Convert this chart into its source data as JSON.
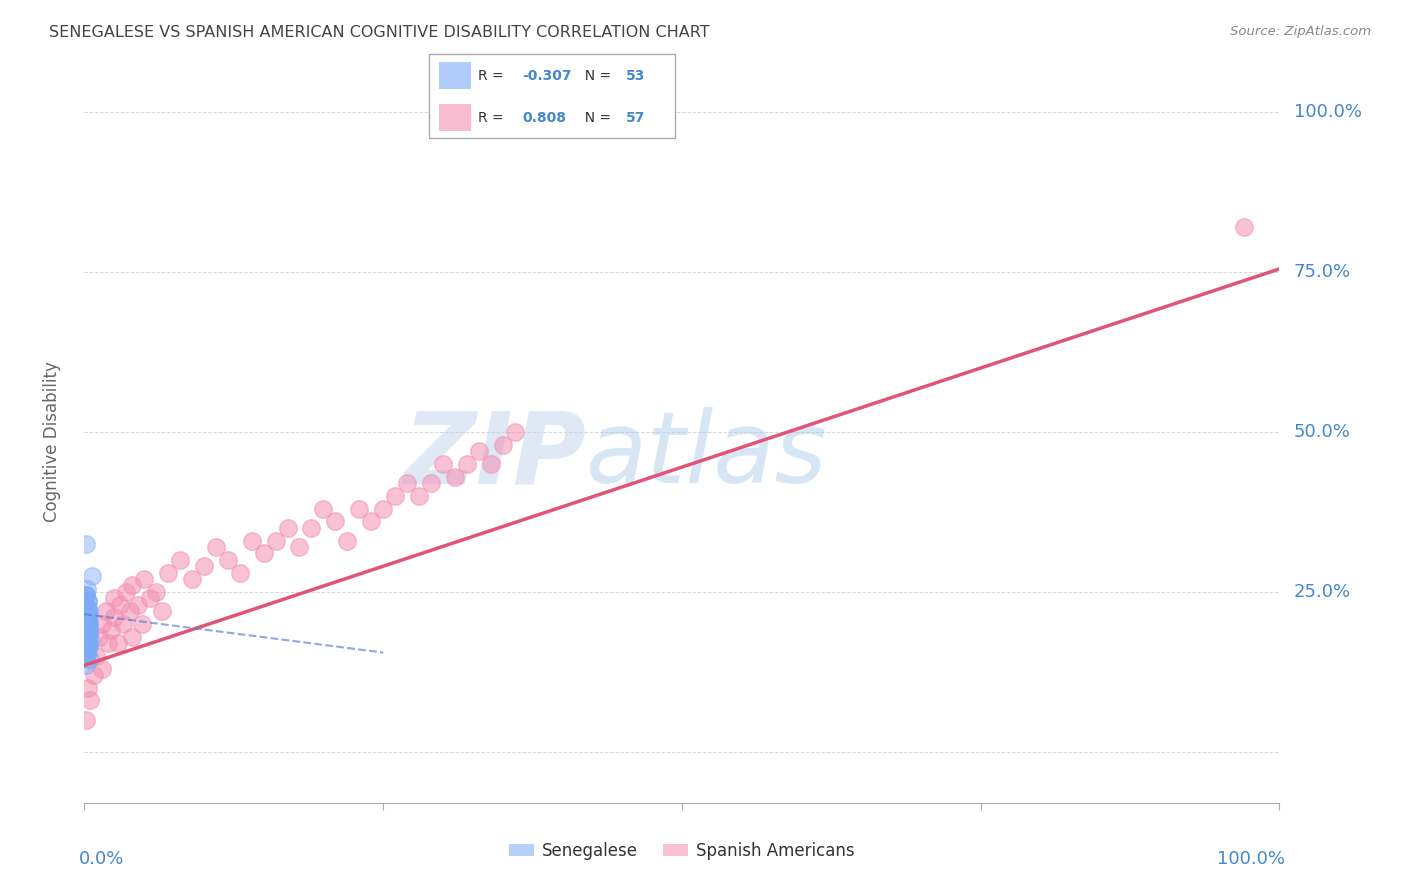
{
  "title": "SENEGALESE VS SPANISH AMERICAN COGNITIVE DISABILITY CORRELATION CHART",
  "source": "Source: ZipAtlas.com",
  "ylabel": "Cognitive Disability",
  "legend_label_blue": "Senegalese",
  "legend_label_pink": "Spanish Americans",
  "legend_blue_r": "-0.307",
  "legend_blue_n": "53",
  "legend_pink_r": "0.808",
  "legend_pink_n": "57",
  "watermark_zip": "ZIP",
  "watermark_atlas": "atlas",
  "blue_color": "#7baaf7",
  "pink_color": "#f48fb1",
  "blue_line_color": "#5577cc",
  "pink_line_color": "#e05577",
  "bg_color": "#ffffff",
  "grid_color": "#cccccc",
  "axis_label_color": "#4488cc",
  "title_color": "#444444",
  "ytick_values": [
    0.0,
    0.25,
    0.5,
    0.75,
    1.0
  ],
  "ytick_labels": [
    "",
    "25.0%",
    "50.0%",
    "75.0%",
    "100.0%"
  ],
  "xlim": [
    0.0,
    1.0
  ],
  "ylim": [
    -0.08,
    1.05
  ],
  "senegalese_x": [
    0.001,
    0.002,
    0.003,
    0.001,
    0.002,
    0.004,
    0.005,
    0.003,
    0.006,
    0.002,
    0.001,
    0.003,
    0.002,
    0.004,
    0.001,
    0.002,
    0.003,
    0.005,
    0.004,
    0.002,
    0.001,
    0.003,
    0.002,
    0.001,
    0.004,
    0.003,
    0.002,
    0.001,
    0.003,
    0.002,
    0.001,
    0.002,
    0.003,
    0.004,
    0.001,
    0.002,
    0.003,
    0.001,
    0.002,
    0.004,
    0.001,
    0.002,
    0.003,
    0.001,
    0.002,
    0.004,
    0.003,
    0.002,
    0.001,
    0.002,
    0.004,
    0.001,
    0.002
  ],
  "senegalese_y": [
    0.325,
    0.225,
    0.195,
    0.175,
    0.21,
    0.22,
    0.145,
    0.185,
    0.275,
    0.205,
    0.165,
    0.235,
    0.155,
    0.195,
    0.245,
    0.185,
    0.215,
    0.175,
    0.2,
    0.255,
    0.225,
    0.165,
    0.195,
    0.145,
    0.185,
    0.215,
    0.175,
    0.195,
    0.235,
    0.155,
    0.205,
    0.185,
    0.225,
    0.165,
    0.215,
    0.195,
    0.175,
    0.245,
    0.185,
    0.205,
    0.135,
    0.195,
    0.215,
    0.165,
    0.225,
    0.185,
    0.205,
    0.175,
    0.245,
    0.195,
    0.165,
    0.225,
    0.185
  ],
  "spanish_x": [
    0.001,
    0.003,
    0.005,
    0.008,
    0.01,
    0.012,
    0.015,
    0.015,
    0.018,
    0.02,
    0.022,
    0.025,
    0.025,
    0.028,
    0.03,
    0.032,
    0.035,
    0.038,
    0.04,
    0.04,
    0.045,
    0.048,
    0.05,
    0.055,
    0.06,
    0.065,
    0.07,
    0.08,
    0.09,
    0.1,
    0.11,
    0.12,
    0.13,
    0.14,
    0.15,
    0.16,
    0.17,
    0.18,
    0.19,
    0.2,
    0.21,
    0.22,
    0.23,
    0.24,
    0.25,
    0.26,
    0.27,
    0.28,
    0.29,
    0.3,
    0.31,
    0.32,
    0.33,
    0.34,
    0.35,
    0.36,
    0.97
  ],
  "spanish_y": [
    0.05,
    0.1,
    0.08,
    0.12,
    0.15,
    0.18,
    0.13,
    0.2,
    0.22,
    0.17,
    0.19,
    0.24,
    0.21,
    0.17,
    0.23,
    0.2,
    0.25,
    0.22,
    0.18,
    0.26,
    0.23,
    0.2,
    0.27,
    0.24,
    0.25,
    0.22,
    0.28,
    0.3,
    0.27,
    0.29,
    0.32,
    0.3,
    0.28,
    0.33,
    0.31,
    0.33,
    0.35,
    0.32,
    0.35,
    0.38,
    0.36,
    0.33,
    0.38,
    0.36,
    0.38,
    0.4,
    0.42,
    0.4,
    0.42,
    0.45,
    0.43,
    0.45,
    0.47,
    0.45,
    0.48,
    0.5,
    0.82
  ],
  "pink_line_x0": 0.0,
  "pink_line_y0": 0.135,
  "pink_line_x1": 1.0,
  "pink_line_y1": 0.755,
  "blue_line_x0": 0.0,
  "blue_line_y0": 0.215,
  "blue_line_x1": 0.25,
  "blue_line_y1": 0.155
}
